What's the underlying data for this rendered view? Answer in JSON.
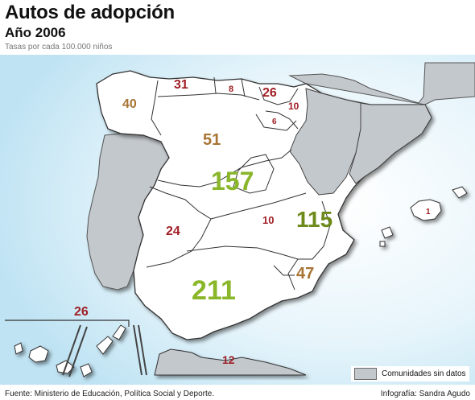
{
  "header": {
    "title": "Autos de adopción",
    "subtitle": "Año 2006",
    "note": "Tasas por cada 100.000 niños"
  },
  "legend": {
    "no_data_label": "Comunidades sin datos",
    "no_data_color": "#c3c8cd"
  },
  "regions": {
    "galicia": "40",
    "asturias": "31",
    "cantabria": "8",
    "pais_vasco": "26",
    "navarra": "10",
    "la_rioja": "6",
    "castilla_leon": "51",
    "madrid": "157",
    "extremadura": "24",
    "castilla_la_mancha": "10",
    "valencia": "115",
    "murcia": "47",
    "andalucia": "211",
    "baleares": "1",
    "canarias": "26",
    "ceuta_melilla": "12"
  },
  "colors": {
    "red": "#a01f25",
    "brown": "#a87434",
    "green_light": "#8ab62a",
    "green_dark": "#6d8a1b",
    "sea": "#cfeaf6",
    "no_data": "#c3c8cd"
  },
  "footer": {
    "source": "Fuente:  Ministerio de Educación, Política Social y Deporte.",
    "credit": "Infografía:  Sandra Agudo"
  }
}
